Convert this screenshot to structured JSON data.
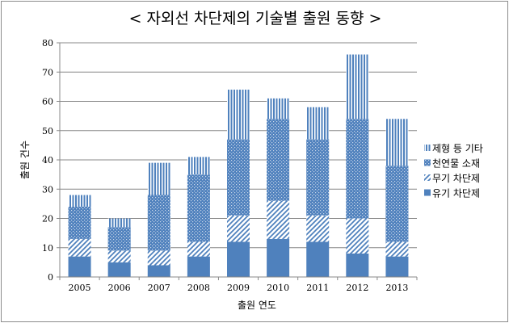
{
  "chart_data": {
    "type": "bar",
    "stacked": true,
    "title": "< 자외선 차단제의 기술별 출원 동향 >",
    "xlabel": "출원 연도",
    "ylabel": "출원 건수",
    "categories": [
      "2005",
      "2006",
      "2007",
      "2008",
      "2009",
      "2010",
      "2011",
      "2012",
      "2013"
    ],
    "ylim": [
      0,
      80
    ],
    "yticks": [
      0,
      10,
      20,
      30,
      40,
      50,
      60,
      70,
      80
    ],
    "grid": true,
    "legend_position": "right",
    "series": [
      {
        "name": "유기 차단제",
        "values": [
          7,
          5,
          4,
          7,
          12,
          13,
          12,
          8,
          7
        ],
        "color": "#4f81bd",
        "pattern": "solid"
      },
      {
        "name": "무기 차단제",
        "values": [
          6,
          4,
          5,
          5,
          9,
          13,
          9,
          12,
          5
        ],
        "color": "#4f81bd",
        "pattern": "diagonal"
      },
      {
        "name": "천연물 소재",
        "values": [
          11,
          8,
          19,
          23,
          26,
          28,
          26,
          34,
          26
        ],
        "color": "#4f81bd",
        "pattern": "dots"
      },
      {
        "name": "제형 등 기타",
        "values": [
          4,
          3,
          11,
          6,
          17,
          7,
          11,
          22,
          16
        ],
        "color": "#4f81bd",
        "pattern": "vertical"
      }
    ]
  }
}
